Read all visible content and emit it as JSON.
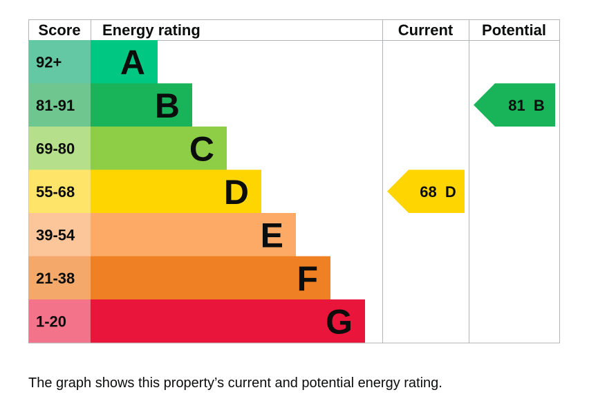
{
  "chart_data": {
    "type": "bar",
    "headers": {
      "score": "Score",
      "rating": "Energy rating",
      "current": "Current",
      "potential": "Potential"
    },
    "bands": [
      {
        "letter": "A",
        "score": "92+",
        "min_score": 92,
        "band_color": "#00c781",
        "score_color": "#64c8a4"
      },
      {
        "letter": "B",
        "score": "81-91",
        "min_score": 81,
        "band_color": "#19b459",
        "score_color": "#70c68f"
      },
      {
        "letter": "C",
        "score": "69-80",
        "min_score": 69,
        "band_color": "#8dce46",
        "score_color": "#b5df8a"
      },
      {
        "letter": "D",
        "score": "55-68",
        "min_score": 55,
        "band_color": "#ffd500",
        "score_color": "#ffe46a"
      },
      {
        "letter": "E",
        "score": "39-54",
        "min_score": 39,
        "band_color": "#fcaa65",
        "score_color": "#fdc69a"
      },
      {
        "letter": "F",
        "score": "21-38",
        "min_score": 21,
        "band_color": "#ef8023",
        "score_color": "#f4a86a"
      },
      {
        "letter": "G",
        "score": "1-20",
        "min_score": 1,
        "band_color": "#e9153b",
        "score_color": "#f2738a"
      }
    ],
    "current": {
      "value": 68,
      "band": "D",
      "label": "68  D"
    },
    "potential": {
      "value": 81,
      "band": "B",
      "label": "81  B"
    }
  },
  "caption": "The graph shows this property’s current and potential energy rating."
}
